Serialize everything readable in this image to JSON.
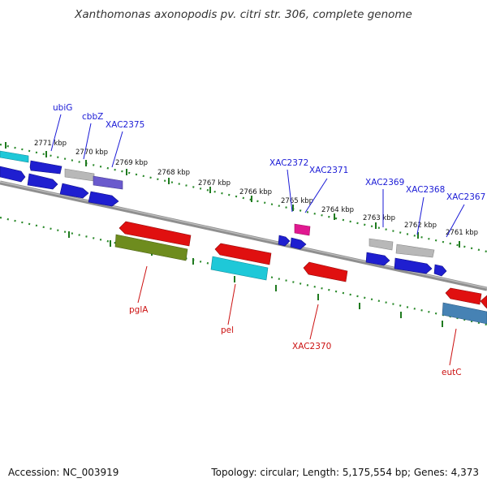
{
  "title": "Xanthomonas axonopodis pv. citri str. 306, complete genome",
  "footer": {
    "accession": "Accession: NC_003919",
    "stats": "Topology: circular; Length: 5,175,554 bp; Genes: 4,373"
  },
  "scale_labels": [
    "2771 kbp",
    "2770 kbp",
    "2769 kbp",
    "2768 kbp",
    "2767 kbp",
    "2766 kbp",
    "2765 kbp",
    "2764 kbp",
    "2763 kbp",
    "2762 kbp",
    "2761 kbp"
  ],
  "top_gene_labels": [
    "ubiG",
    "cbbZ",
    "XAC2375",
    "XAC2372",
    "XAC2371",
    "XAC2369",
    "XAC2368",
    "XAC2367"
  ],
  "bottom_gene_labels": [
    "pglA",
    "pel",
    "XAC2370",
    "eutC"
  ],
  "colors": {
    "background": "#ffffff",
    "backbone": "#8a8a8a",
    "scale_ticks": "#1f7a1f",
    "top_label": "#1a1ad6",
    "bottom_label": "#cc1111",
    "gene_blue": "#1f1fd0",
    "gene_red": "#e01010",
    "gene_gray": "#b8b8b8",
    "gene_cyan": "#1ec8d8",
    "gene_olive": "#6e8c1e",
    "gene_purple": "#6a5acd",
    "gene_magenta": "#e01890",
    "gene_steel": "#4682b4"
  }
}
